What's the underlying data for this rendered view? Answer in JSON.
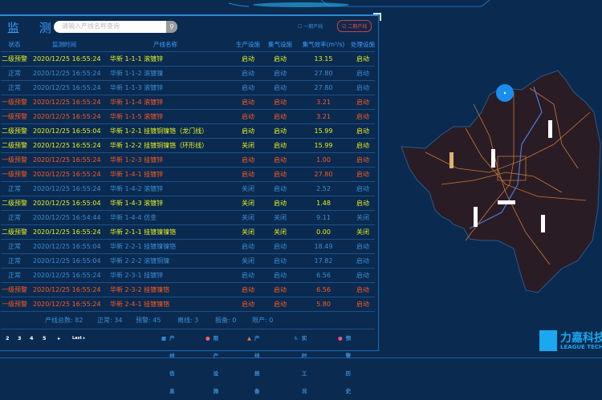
{
  "header": {
    "title": "监 测",
    "search_placeholder": "请输入产线名称查询",
    "filters": [
      {
        "label": "一期产线",
        "checked": false
      },
      {
        "label": "二期产线",
        "checked": true
      }
    ]
  },
  "table": {
    "columns": [
      "状态",
      "监测时间",
      "产线名称",
      "生产设施",
      "集气设施",
      "集气效率(m³/s)",
      "处理设施"
    ],
    "rows": [
      {
        "level": "yellow",
        "status": "二级预警",
        "time": "2020/12/25 16:55:24",
        "name": "华新 1-1-1 滚镀锌",
        "prod": "启动",
        "gas": "启动",
        "eff": "13.15",
        "treat": "启动"
      },
      {
        "level": "blue",
        "status": "正常",
        "time": "2020/12/25 16:55:24",
        "name": "华新 1-1-2 滚镀镍",
        "prod": "启动",
        "gas": "启动",
        "eff": "27.80",
        "treat": "启动"
      },
      {
        "level": "blue",
        "status": "正常",
        "time": "2020/12/25 16:55:24",
        "name": "华新 1-1-3 滚镀锌",
        "prod": "启动",
        "gas": "启动",
        "eff": "27.80",
        "treat": "启动"
      },
      {
        "level": "orange",
        "status": "一级预警",
        "time": "2020/12/25 16:55:24",
        "name": "华新 1-1-4 滚镀锌",
        "prod": "启动",
        "gas": "启动",
        "eff": "3.21",
        "treat": "启动"
      },
      {
        "level": "orange",
        "status": "一级预警",
        "time": "2020/12/25 16:55:24",
        "name": "华新 1-1-5 滚镀锌",
        "prod": "启动",
        "gas": "启动",
        "eff": "3.21",
        "treat": "启动"
      },
      {
        "level": "yellow",
        "status": "二级预警",
        "time": "2020/12/25 16:55:04",
        "name": "华新 1-2-1 挂镀铜镍铬（龙门线）",
        "prod": "启动",
        "gas": "启动",
        "eff": "15.99",
        "treat": "启动"
      },
      {
        "level": "yellow",
        "status": "二级预警",
        "time": "2020/12/25 16:55:24",
        "name": "华新 1-2-2 挂镀铜镍铬（环形线）",
        "prod": "关闭",
        "gas": "启动",
        "eff": "15.99",
        "treat": "启动"
      },
      {
        "level": "orange",
        "status": "一级预警",
        "time": "2020/12/25 16:55:24",
        "name": "华新 1-2-3 挂镀锌",
        "prod": "启动",
        "gas": "启动",
        "eff": "1.00",
        "treat": "启动"
      },
      {
        "level": "orange",
        "status": "一级预警",
        "time": "2020/12/25 16:55:24",
        "name": "华新 1-4-1 挂镀锌",
        "prod": "启动",
        "gas": "启动",
        "eff": "27.80",
        "treat": "启动"
      },
      {
        "level": "blue",
        "status": "正常",
        "time": "2020/12/25 16:55:24",
        "name": "华新 1-4-2 滚镀锌",
        "prod": "关闭",
        "gas": "启动",
        "eff": "2.52",
        "treat": "启动"
      },
      {
        "level": "yellow",
        "status": "二级预警",
        "time": "2020/12/25 16:55:04",
        "name": "华新 1-4-3 滚镀锌",
        "prod": "关闭",
        "gas": "启动",
        "eff": "1.48",
        "treat": "启动"
      },
      {
        "level": "blue",
        "status": "正常",
        "time": "2020/12/25 16:54:44",
        "name": "华新 1-4-4 仿金",
        "prod": "关闭",
        "gas": "关闭",
        "eff": "9.11",
        "treat": "关闭"
      },
      {
        "level": "yellow",
        "status": "二级预警",
        "time": "2020/12/25 16:55:24",
        "name": "华新 2-1-1 挂镀镍镍铬",
        "prod": "关闭",
        "gas": "关闭",
        "eff": "0.00",
        "treat": "关闭"
      },
      {
        "level": "blue",
        "status": "正常",
        "time": "2020/12/25 16:55:04",
        "name": "华新 2-2-1 挂镀镍镍铬",
        "prod": "启动",
        "gas": "启动",
        "eff": "18.49",
        "treat": "启动"
      },
      {
        "level": "blue",
        "status": "正常",
        "time": "2020/12/25 16:55:04",
        "name": "华新 2-2-2 滚镀铜镍",
        "prod": "关闭",
        "gas": "启动",
        "eff": "17.82",
        "treat": "启动"
      },
      {
        "level": "blue",
        "status": "正常",
        "time": "2020/12/25 16:55:24",
        "name": "华新 2-3-1 挂镀锌",
        "prod": "启动",
        "gas": "启动",
        "eff": "6.56",
        "treat": "启动"
      },
      {
        "level": "orange",
        "status": "一级预警",
        "time": "2020/12/25 16:55:24",
        "name": "华新 2-3-2 挂镀镍铬",
        "prod": "启动",
        "gas": "启动",
        "eff": "6.56",
        "treat": "启动"
      },
      {
        "level": "orange",
        "status": "一级预警",
        "time": "2020/12/25 16:55:24",
        "name": "华新 2-4-1 挂镀镍铬",
        "prod": "启动",
        "gas": "启动",
        "eff": "5.80",
        "treat": "启动"
      }
    ]
  },
  "summary": [
    "产线总数: 82",
    "正常: 34",
    "预警: 45",
    "离线: 3",
    "报备: 0",
    "限产: 0"
  ],
  "pager": {
    "pages": [
      "2",
      "3",
      "4",
      "5"
    ],
    "next": "▸",
    "last": "Last ▸"
  },
  "legend": [
    {
      "icon": "info-icon",
      "label": "产线信息",
      "color": "#2a8ad8"
    },
    {
      "icon": "limit-icon",
      "label": "限产设施",
      "color": "#ff6060"
    },
    {
      "icon": "warning-triangle-icon",
      "label": "产线报备",
      "color": "#c08060"
    },
    {
      "icon": "worker-icon",
      "label": "实时工况",
      "color": "#2aa8e0"
    },
    {
      "icon": "history-icon",
      "label": "预警历史",
      "color": "#ff5080"
    }
  ],
  "logo": {
    "cn": "力嘉科技",
    "en": "LEAGUE TECH"
  },
  "colors": {
    "yellow": "#e8f020",
    "orange": "#ff5a1e",
    "blue": "#3a8fd8",
    "background": "#0a2a50",
    "map_fill": "#2a1c24",
    "roads": "#c8783a"
  }
}
